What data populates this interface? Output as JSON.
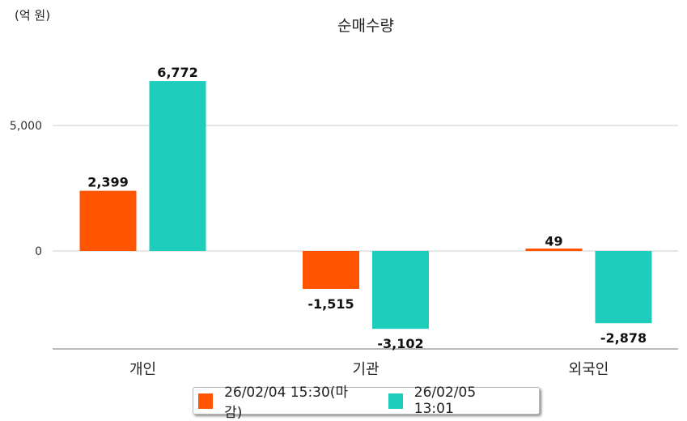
{
  "chart_data": {
    "type": "bar",
    "title": "순매수량",
    "unit_label": "(억 원)",
    "categories": [
      "개인",
      "기관",
      "외국인"
    ],
    "series": [
      {
        "name": "26/02/04 15:30(마감)",
        "color": "#ff5500",
        "values": [
          2399,
          -1515,
          49
        ],
        "labels": [
          "2,399",
          "-1,515",
          "49"
        ]
      },
      {
        "name": "26/02/05 13:01",
        "color": "#1ecdbc",
        "values": [
          6772,
          -3102,
          -2878
        ],
        "labels": [
          "6,772",
          "-3,102",
          "-2,878"
        ]
      }
    ],
    "yticks": [
      0,
      5000
    ],
    "ytick_labels": [
      "0",
      "5,000"
    ],
    "ylim": [
      -3900,
      7500
    ],
    "grid": true,
    "legend_position": "bottom"
  }
}
